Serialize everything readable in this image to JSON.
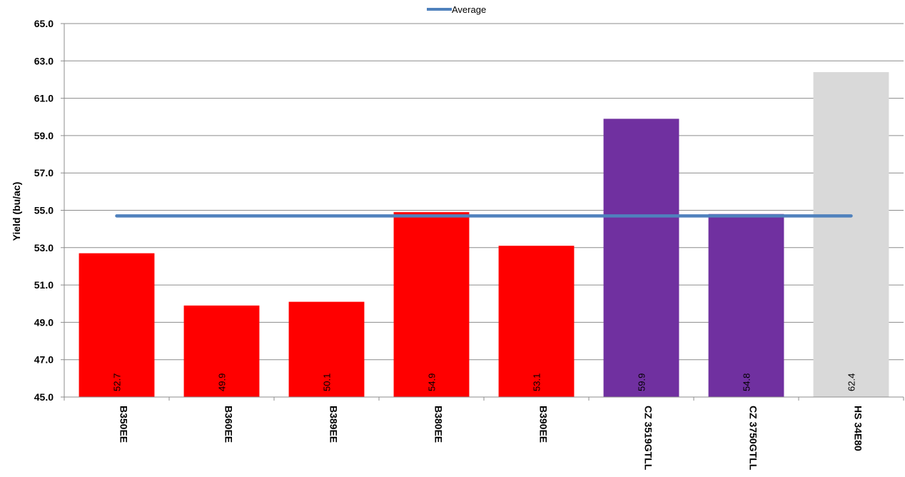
{
  "chart_data": {
    "type": "bar",
    "categories": [
      "B350EE",
      "B360EE",
      "B389EE",
      "B380EE",
      "B390EE",
      "CZ 3519GTLL",
      "CZ 3750GTLL",
      "HS 34E80"
    ],
    "values": [
      52.7,
      49.9,
      50.1,
      54.9,
      53.1,
      59.9,
      54.8,
      62.4
    ],
    "data_labels": [
      "52.7",
      "49.9",
      "50.1",
      "54.9",
      "53.1",
      "59.9",
      "54.8",
      "62.4"
    ],
    "bar_colors": [
      "#ff0000",
      "#ff0000",
      "#ff0000",
      "#ff0000",
      "#ff0000",
      "#7030a0",
      "#7030a0",
      "#d9d9d9"
    ],
    "average": {
      "name": "Average",
      "value": 54.7,
      "color": "#4f81bd"
    },
    "ylabel": "Yield (bu/ac)",
    "xlabel": "",
    "ylim": [
      45,
      65
    ],
    "yticks": [
      "45.0",
      "47.0",
      "49.0",
      "51.0",
      "53.0",
      "55.0",
      "57.0",
      "59.0",
      "61.0",
      "63.0",
      "65.0"
    ],
    "grid": true,
    "legend_position": "top-center"
  }
}
